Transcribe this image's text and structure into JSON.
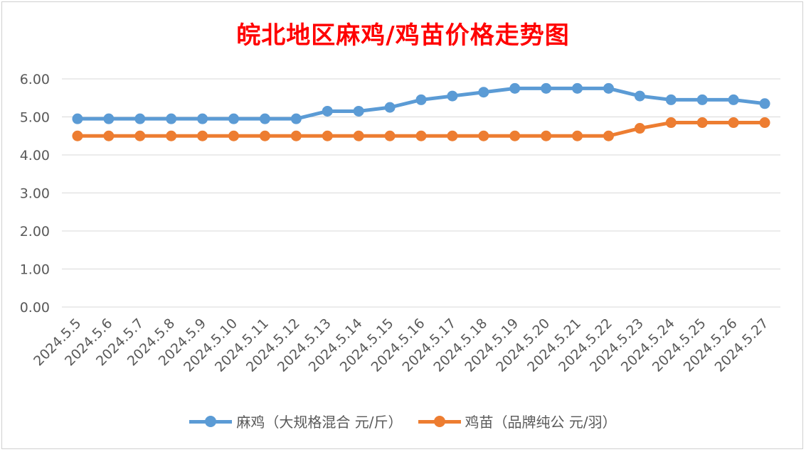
{
  "chart_data": {
    "type": "line",
    "title": "皖北地区麻鸡/鸡苗价格走势图",
    "categories": [
      "2024.5.5",
      "2024.5.6",
      "2024.5.7",
      "2024.5.8",
      "2024.5.9",
      "2024.5.10",
      "2024.5.11",
      "2024.5.12",
      "2024.5.13",
      "2024.5.14",
      "2024.5.15",
      "2024.5.16",
      "2024.5.17",
      "2024.5.18",
      "2024.5.19",
      "2024.5.20",
      "2024.5.21",
      "2024.5.22",
      "2024.5.23",
      "2024.5.24",
      "2024.5.25",
      "2024.5.26",
      "2024.5.27"
    ],
    "series": [
      {
        "name": "麻鸡（大规格混合 元/斤）",
        "color": "#5b9bd5",
        "values": [
          4.95,
          4.95,
          4.95,
          4.95,
          4.95,
          4.95,
          4.95,
          4.95,
          5.15,
          5.15,
          5.25,
          5.45,
          5.55,
          5.65,
          5.75,
          5.75,
          5.75,
          5.75,
          5.55,
          5.45,
          5.45,
          5.45,
          5.35
        ]
      },
      {
        "name": "鸡苗（品牌纯公 元/羽）",
        "color": "#ed7d31",
        "values": [
          4.5,
          4.5,
          4.5,
          4.5,
          4.5,
          4.5,
          4.5,
          4.5,
          4.5,
          4.5,
          4.5,
          4.5,
          4.5,
          4.5,
          4.5,
          4.5,
          4.5,
          4.5,
          4.7,
          4.85,
          4.85,
          4.85,
          4.85
        ]
      }
    ],
    "ylim": [
      0,
      6
    ],
    "yticks": [
      "0.00",
      "1.00",
      "2.00",
      "3.00",
      "4.00",
      "5.00",
      "6.00"
    ],
    "grid": true,
    "legend_position": "bottom",
    "xlabel": "",
    "ylabel": ""
  }
}
